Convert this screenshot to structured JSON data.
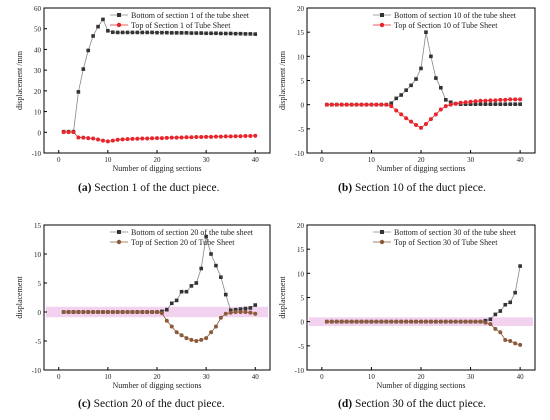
{
  "colors": {
    "bottom": "#333333",
    "top1": "#e8252c",
    "top2": "#e8252c",
    "top3": "#8a5a3a",
    "top4": "#8a5a3a",
    "band": "#f3d2ef"
  },
  "panels": [
    {
      "caption_letter": "(a)",
      "caption_text": "Section 1 of the duct piece."
    },
    {
      "caption_letter": "(b)",
      "caption_text": "Section 10 of the duct piece."
    },
    {
      "caption_letter": "(c)",
      "caption_text": "Section 20 of the duct piece."
    },
    {
      "caption_letter": "(d)",
      "caption_text": "Section 30 of the duct piece."
    }
  ],
  "chart_data": [
    {
      "type": "line",
      "title": "",
      "xlabel": "Number of digging sections",
      "ylabel": "displacement /mm",
      "xlim": [
        -3,
        43
      ],
      "ylim": [
        -10,
        60
      ],
      "xticks": [
        0,
        10,
        20,
        30,
        40
      ],
      "yticks": [
        -10,
        0,
        10,
        20,
        30,
        40,
        50,
        60
      ],
      "legend": "top-right",
      "series": [
        {
          "name": "Bottom of section 1 of the tube sheet",
          "marker": "square",
          "x": [
            1,
            2,
            3,
            4,
            5,
            6,
            7,
            8,
            9,
            10,
            11,
            12,
            13,
            14,
            15,
            16,
            17,
            18,
            19,
            20,
            21,
            22,
            23,
            24,
            25,
            26,
            27,
            28,
            29,
            30,
            31,
            32,
            33,
            34,
            35,
            36,
            37,
            38,
            39,
            40
          ],
          "y": [
            0.3,
            0.3,
            0.3,
            19.5,
            30.5,
            39.5,
            46.5,
            51,
            54.5,
            49,
            48.3,
            48.2,
            48.2,
            48.2,
            48.2,
            48.2,
            48.2,
            48.2,
            48.2,
            48.1,
            48.1,
            48.1,
            48,
            48,
            48,
            48,
            47.9,
            47.9,
            47.9,
            47.8,
            47.8,
            47.8,
            47.7,
            47.7,
            47.7,
            47.6,
            47.6,
            47.5,
            47.5,
            47.4
          ]
        },
        {
          "name": "Top of Section 1 of Tube Sheet",
          "marker": "circle",
          "x": [
            1,
            2,
            3,
            4,
            5,
            6,
            7,
            8,
            9,
            10,
            11,
            12,
            13,
            14,
            15,
            16,
            17,
            18,
            19,
            20,
            21,
            22,
            23,
            24,
            25,
            26,
            27,
            28,
            29,
            30,
            31,
            32,
            33,
            34,
            35,
            36,
            37,
            38,
            39,
            40
          ],
          "y": [
            0.1,
            0.1,
            0.1,
            -2.5,
            -2.6,
            -2.8,
            -3,
            -3.5,
            -4,
            -4.4,
            -4,
            -3.6,
            -3.4,
            -3.3,
            -3.2,
            -3.1,
            -3,
            -3,
            -2.9,
            -2.8,
            -2.8,
            -2.7,
            -2.6,
            -2.6,
            -2.5,
            -2.4,
            -2.4,
            -2.3,
            -2.3,
            -2.2,
            -2.2,
            -2.1,
            -2.1,
            -2,
            -2,
            -1.9,
            -1.9,
            -1.8,
            -1.8,
            -1.7
          ]
        }
      ]
    },
    {
      "type": "line",
      "title": "",
      "xlabel": "Number of digging sections",
      "ylabel": "displacement /mm",
      "xlim": [
        -3,
        43
      ],
      "ylim": [
        -10,
        20
      ],
      "xticks": [
        0,
        10,
        20,
        30,
        40
      ],
      "yticks": [
        -10,
        -5,
        0,
        5,
        10,
        15,
        20
      ],
      "legend": "top-right",
      "series": [
        {
          "name": "Bottom of section 10 of the tube sheet",
          "marker": "square",
          "x": [
            1,
            2,
            3,
            4,
            5,
            6,
            7,
            8,
            9,
            10,
            11,
            12,
            13,
            14,
            15,
            16,
            17,
            18,
            19,
            20,
            21,
            22,
            23,
            24,
            25,
            26,
            27,
            28,
            29,
            30,
            31,
            32,
            33,
            34,
            35,
            36,
            37,
            38,
            39,
            40
          ],
          "y": [
            0,
            0,
            0,
            0,
            0,
            0,
            0,
            0,
            0,
            0,
            0,
            0,
            0,
            0.3,
            1.3,
            2,
            3,
            4,
            5.3,
            7.5,
            15,
            10,
            5.5,
            3.5,
            1,
            0.5,
            0.2,
            0.1,
            0.1,
            0.1,
            0.1,
            0.1,
            0.1,
            0.1,
            0.1,
            0.1,
            0.1,
            0.1,
            0.1,
            0.1
          ]
        },
        {
          "name": "Top of Section 10 of Tube Sheet",
          "marker": "circle",
          "x": [
            1,
            2,
            3,
            4,
            5,
            6,
            7,
            8,
            9,
            10,
            11,
            12,
            13,
            14,
            15,
            16,
            17,
            18,
            19,
            20,
            21,
            22,
            23,
            24,
            25,
            26,
            27,
            28,
            29,
            30,
            31,
            32,
            33,
            34,
            35,
            36,
            37,
            38,
            39,
            40
          ],
          "y": [
            0,
            0,
            0,
            0,
            0,
            0,
            0,
            0,
            0,
            0,
            0,
            0,
            0,
            -0.3,
            -1.2,
            -2,
            -2.8,
            -3.5,
            -4.2,
            -4.8,
            -4,
            -3,
            -2,
            -1,
            -0.3,
            0,
            0.2,
            0.4,
            0.5,
            0.6,
            0.7,
            0.8,
            0.8,
            0.9,
            0.9,
            1,
            1,
            1.1,
            1.1,
            1.1
          ]
        }
      ]
    },
    {
      "type": "line",
      "title": "",
      "xlabel": "Number of digging sections",
      "ylabel": "displacement",
      "xlim": [
        -3,
        43
      ],
      "ylim": [
        -10,
        15
      ],
      "xticks": [
        0,
        10,
        20,
        30,
        40
      ],
      "yticks": [
        -10,
        -5,
        0,
        5,
        10,
        15
      ],
      "legend": "top-right",
      "series": [
        {
          "name": "Bottom of section 20 of the tube sheet",
          "marker": "square",
          "x": [
            1,
            2,
            3,
            4,
            5,
            6,
            7,
            8,
            9,
            10,
            11,
            12,
            13,
            14,
            15,
            16,
            17,
            18,
            19,
            20,
            21,
            22,
            23,
            24,
            25,
            26,
            27,
            28,
            29,
            30,
            31,
            32,
            33,
            34,
            35,
            36,
            37,
            38,
            39,
            40
          ],
          "y": [
            0,
            0,
            0,
            0,
            0,
            0,
            0,
            0,
            0,
            0,
            0,
            0,
            0,
            0,
            0,
            0,
            0,
            0,
            0,
            0,
            0.1,
            0.4,
            1.5,
            2,
            3.5,
            3.5,
            4.5,
            5,
            7.5,
            13,
            10,
            8,
            6,
            3,
            0.3,
            0.4,
            0.5,
            0.6,
            0.7,
            1.2
          ]
        },
        {
          "name": "Top of Section 20 of Tube Sheet",
          "marker": "circle",
          "x": [
            1,
            2,
            3,
            4,
            5,
            6,
            7,
            8,
            9,
            10,
            11,
            12,
            13,
            14,
            15,
            16,
            17,
            18,
            19,
            20,
            21,
            22,
            23,
            24,
            25,
            26,
            27,
            28,
            29,
            30,
            31,
            32,
            33,
            34,
            35,
            36,
            37,
            38,
            39,
            40
          ],
          "y": [
            0,
            0,
            0,
            0,
            0,
            0,
            0,
            0,
            0,
            0,
            0,
            0,
            0,
            0,
            0,
            0,
            0,
            0,
            0,
            0,
            -0.2,
            -1.5,
            -2.5,
            -3.5,
            -4,
            -4.5,
            -4.8,
            -5,
            -4.8,
            -4.5,
            -3.5,
            -2.5,
            -1,
            -0.3,
            -0.1,
            0,
            0,
            0,
            -0.1,
            -0.3
          ]
        }
      ]
    },
    {
      "type": "line",
      "title": "",
      "xlabel": "Number of digging sections",
      "ylabel": "displacement",
      "xlim": [
        -3,
        43
      ],
      "ylim": [
        -10,
        20
      ],
      "xticks": [
        0,
        10,
        20,
        30,
        40
      ],
      "yticks": [
        -10,
        -5,
        0,
        5,
        10,
        15,
        20
      ],
      "legend": "top-right",
      "series": [
        {
          "name": "Bottom of section 30 of the tube sheet",
          "marker": "square",
          "x": [
            1,
            2,
            3,
            4,
            5,
            6,
            7,
            8,
            9,
            10,
            11,
            12,
            13,
            14,
            15,
            16,
            17,
            18,
            19,
            20,
            21,
            22,
            23,
            24,
            25,
            26,
            27,
            28,
            29,
            30,
            31,
            32,
            33,
            34,
            35,
            36,
            37,
            38,
            39,
            40
          ],
          "y": [
            0,
            0,
            0,
            0,
            0,
            0,
            0,
            0,
            0,
            0,
            0,
            0,
            0,
            0,
            0,
            0,
            0,
            0,
            0,
            0,
            0,
            0,
            0,
            0,
            0,
            0,
            0,
            0,
            0,
            0,
            0,
            0,
            0.2,
            0.5,
            1.5,
            2.2,
            3.5,
            4,
            6,
            11.5
          ]
        },
        {
          "name": "Top of Section 30 of Tube Sheet",
          "marker": "circle",
          "x": [
            1,
            2,
            3,
            4,
            5,
            6,
            7,
            8,
            9,
            10,
            11,
            12,
            13,
            14,
            15,
            16,
            17,
            18,
            19,
            20,
            21,
            22,
            23,
            24,
            25,
            26,
            27,
            28,
            29,
            30,
            31,
            32,
            33,
            34,
            35,
            36,
            37,
            38,
            39,
            40
          ],
          "y": [
            0,
            0,
            0,
            0,
            0,
            0,
            0,
            0,
            0,
            0,
            0,
            0,
            0,
            0,
            0,
            0,
            0,
            0,
            0,
            0,
            0,
            0,
            0,
            0,
            0,
            0,
            0,
            0,
            0,
            0,
            0,
            0,
            -0.2,
            -0.5,
            -1.5,
            -2.2,
            -3.8,
            -4,
            -4.5,
            -4.8
          ]
        }
      ]
    }
  ]
}
